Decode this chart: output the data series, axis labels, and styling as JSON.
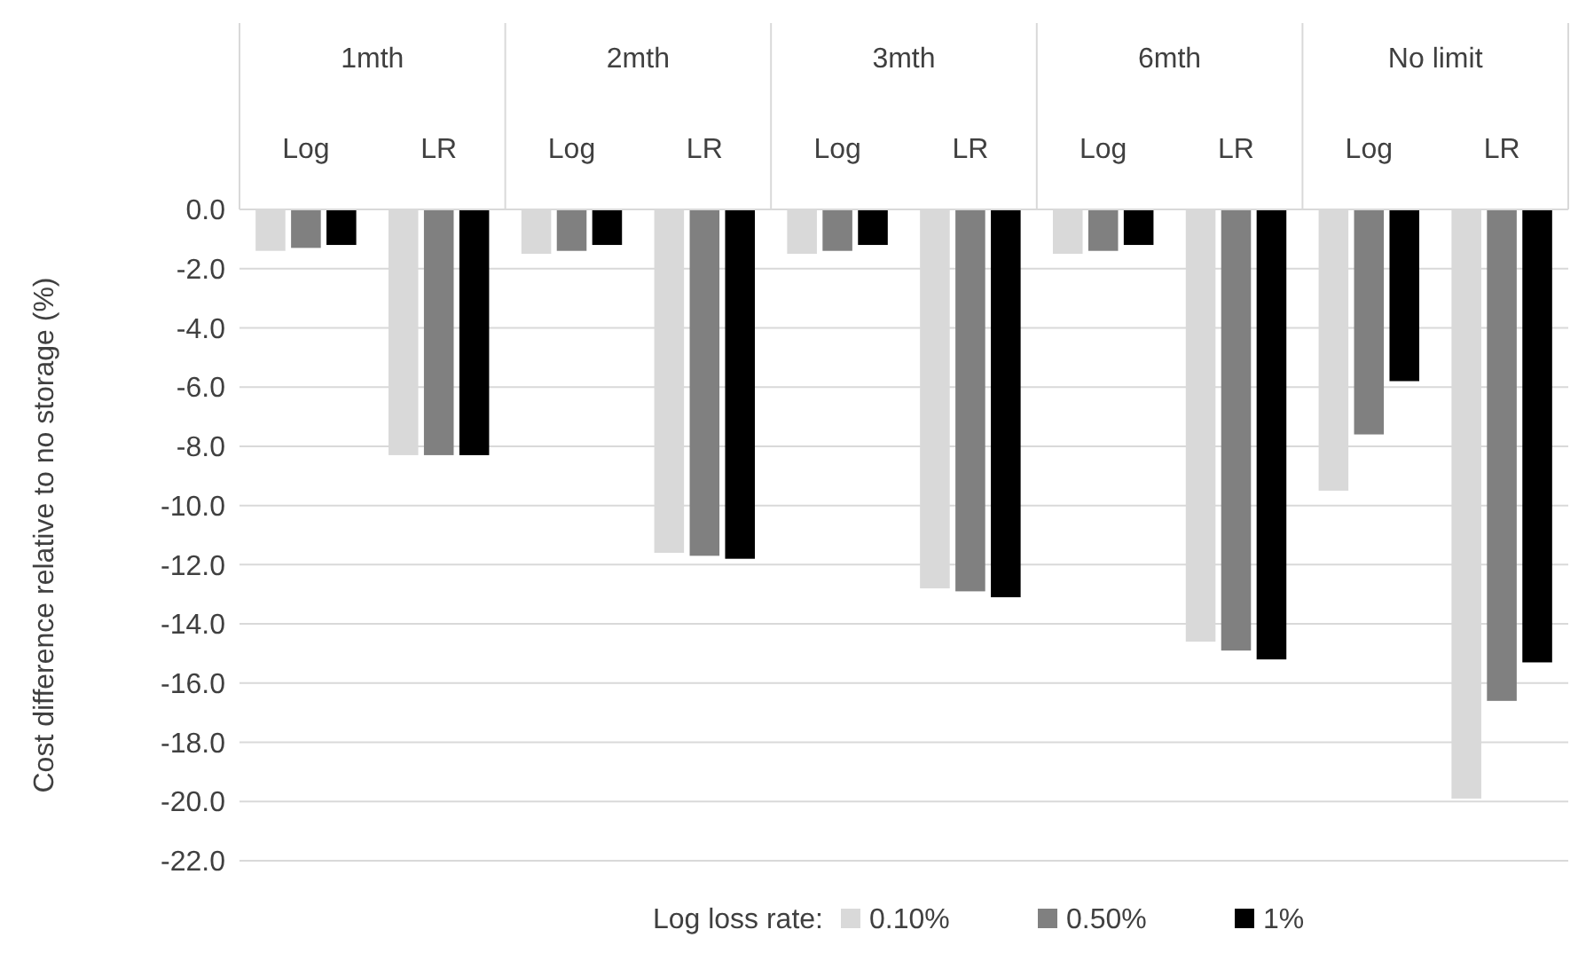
{
  "chart_data": {
    "type": "bar",
    "ylabel": "Cost difference relative to no storage (%)",
    "legend_title": "Log loss rate:",
    "categories": [
      "Log",
      "LR",
      "Log",
      "LR",
      "Log",
      "LR",
      "Log",
      "LR",
      "Log",
      "LR"
    ],
    "annotations": [
      "1mth",
      "2mth",
      "3mth",
      "6mth",
      "No limit"
    ],
    "series": [
      {
        "name": "0.10%",
        "color": "#d9d9d9",
        "values": [
          -1.4,
          -8.3,
          -1.5,
          -11.6,
          -1.5,
          -12.8,
          -1.5,
          -14.6,
          -9.5,
          -19.9
        ]
      },
      {
        "name": "0.50%",
        "color": "#808080",
        "values": [
          -1.3,
          -8.3,
          -1.4,
          -11.7,
          -1.4,
          -12.9,
          -1.4,
          -14.9,
          -7.6,
          -16.6
        ]
      },
      {
        "name": "1%",
        "color": "#000000",
        "values": [
          -1.2,
          -8.3,
          -1.2,
          -11.8,
          -1.2,
          -13.1,
          -1.2,
          -15.2,
          -5.8,
          -15.3
        ]
      }
    ],
    "ylim": [
      -22,
      0
    ],
    "yticks": [
      {
        "value": 0,
        "label": "0.0"
      },
      {
        "value": -2,
        "label": "-2.0"
      },
      {
        "value": -4,
        "label": "-4.0"
      },
      {
        "value": -6,
        "label": "-6.0"
      },
      {
        "value": -8,
        "label": "-8.0"
      },
      {
        "value": -10,
        "label": "-10.0"
      },
      {
        "value": -12,
        "label": "-12.0"
      },
      {
        "value": -14,
        "label": "-14.0"
      },
      {
        "value": -16,
        "label": "-16.0"
      },
      {
        "value": -18,
        "label": "-18.0"
      },
      {
        "value": -20,
        "label": "-20.0"
      },
      {
        "value": -22,
        "label": "-22.0"
      }
    ],
    "grid": "y",
    "legend": "bottom"
  }
}
